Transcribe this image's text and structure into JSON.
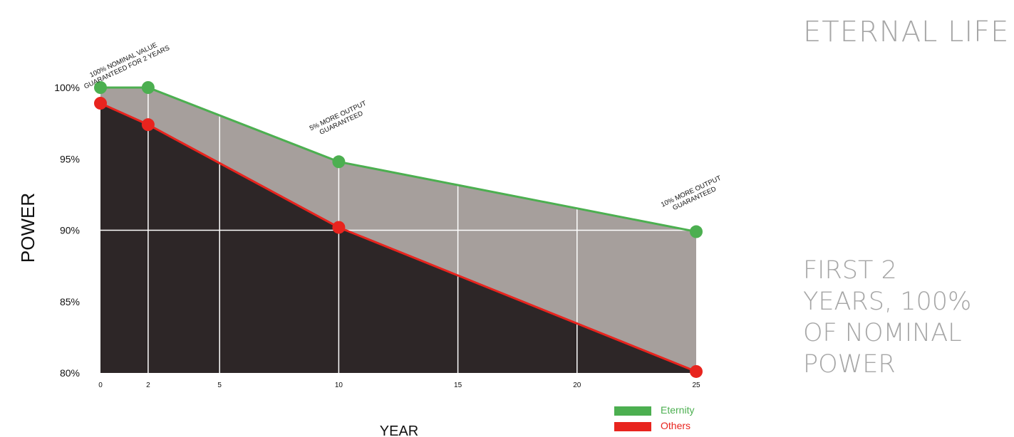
{
  "page": {
    "title": "ETERNAL LIFE",
    "note": "FIRST 2 YEARS, 100% OF NOMINAL POWER"
  },
  "colors": {
    "eternity": "#4caf50",
    "others": "#e8241e",
    "gap_fill": "#a69f9c",
    "base_fill": "#2d2627",
    "side_text": "#a6a6a6"
  },
  "chart_data": {
    "type": "area",
    "title": "",
    "xlabel": "YEAR",
    "ylabel": "POWER",
    "xlim": [
      0,
      25
    ],
    "ylim": [
      80,
      100
    ],
    "x_ticks": [
      0,
      2,
      5,
      10,
      15,
      20,
      25
    ],
    "x_tick_labels": [
      "0",
      "2",
      "5",
      "10",
      "15",
      "20",
      "25"
    ],
    "y_ticks": [
      80,
      85,
      90,
      95,
      100
    ],
    "y_tick_labels": [
      "80%",
      "85%",
      "90%",
      "95%",
      "100%"
    ],
    "grid": true,
    "series": [
      {
        "name": "Eternity",
        "color": "#4caf50",
        "points": [
          [
            0,
            100
          ],
          [
            2,
            100
          ],
          [
            10,
            94.8
          ],
          [
            25,
            89.9
          ]
        ]
      },
      {
        "name": "Others",
        "color": "#e8241e",
        "points": [
          [
            0,
            98.9
          ],
          [
            2,
            97.4
          ],
          [
            10,
            90.2
          ],
          [
            25,
            80.1
          ]
        ]
      }
    ],
    "annotations": [
      {
        "x": 1,
        "y": 100,
        "lines": [
          "100% NOMINAL VALUE",
          "GUARANTEED FOR 2 YEARS"
        ]
      },
      {
        "x": 10,
        "y": 94.8,
        "lines": [
          "5% MORE OUTPUT",
          "GUARANTEED"
        ]
      },
      {
        "x": 25,
        "y": 89.9,
        "lines": [
          "10% MORE OUTPUT",
          "GUARANTEED"
        ]
      }
    ],
    "legend": {
      "position": "bottom-right",
      "items": [
        {
          "label": "Eternity",
          "color": "#4caf50"
        },
        {
          "label": "Others",
          "color": "#e8241e"
        }
      ]
    }
  }
}
